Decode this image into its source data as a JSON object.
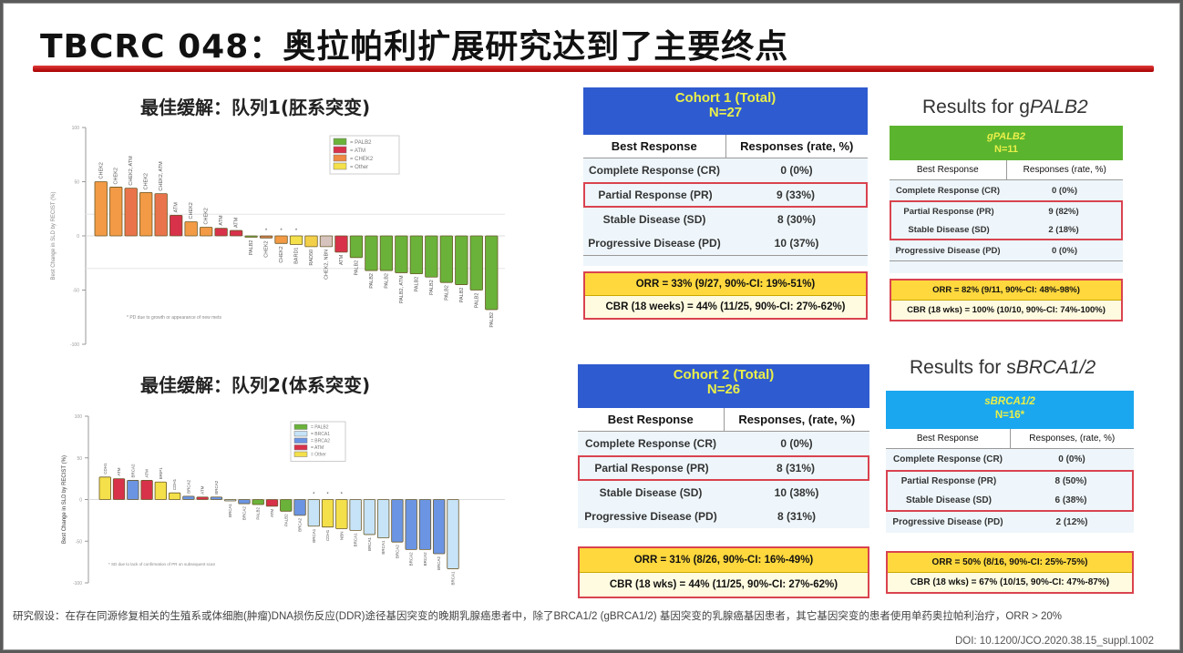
{
  "slide": {
    "title": "TBCRC 048：奥拉帕利扩展研究达到了主要终点",
    "section1_title": "最佳缓解：队列1(胚系突变)",
    "section2_title": "最佳缓解：队列2(体系突变)",
    "footnote": "研究假设：在存在同源修复相关的生殖系或体细胞(肿瘤)DNA损伤反应(DDR)途径基因突变的晚期乳腺癌患者中，除了BRCA1/2 (gBRCA1/2) 基因突变的乳腺癌基因患者，其它基因突变的患者使用单药奥拉帕利治疗，ORR > 20%",
    "doi": "DOI: 10.1200/JCO.2020.38.15_suppl.1002"
  },
  "tables": {
    "cohort1": {
      "header_line1": "Cohort 1 (Total)",
      "header_line2": "N=27",
      "header_color": "#2f5bd0",
      "col1": "Best Response",
      "col2": "Responses (rate, %)",
      "rows": [
        {
          "label": "Complete Response (CR)",
          "value": "0 (0%)"
        },
        {
          "label": "Partial Response (PR)",
          "value": "9  (33%)"
        },
        {
          "label": "Stable Disease (SD)",
          "value": "8  (30%)"
        },
        {
          "label": "Progressive Disease (PD)",
          "value": "10 (37%)"
        }
      ],
      "orr": "ORR = 33% (9/27, 90%-CI: 19%-51%)",
      "cbr": "CBR (18 weeks) =  44% (11/25, 90%-CI: 27%-62%)"
    },
    "gpalb2": {
      "title_prefix": "Results for g",
      "title_gene": "PALB2",
      "header_line1": "gPALB2",
      "header_line2": "N=11",
      "header_color": "#5bb42e",
      "col1": "Best Response",
      "col2": "Responses (rate, %)",
      "rows": [
        {
          "label": "Complete Response (CR)",
          "value": "0 (0%)"
        },
        {
          "label": "Partial Response (PR)",
          "value": "9 (82%)"
        },
        {
          "label": "Stable Disease (SD)",
          "value": "2 (18%)"
        },
        {
          "label": "Progressive Disease (PD)",
          "value": "0 (0%)"
        }
      ],
      "orr": "ORR = 82% (9/11, 90%-CI: 48%-98%)",
      "cbr": "CBR (18 wks) = 100% (10/10, 90%-CI: 74%-100%)"
    },
    "cohort2": {
      "header_line1": "Cohort 2 (Total)",
      "header_line2": "N=26",
      "header_color": "#2f5bd0",
      "col1": "Best Response",
      "col2": "Responses, (rate, %)",
      "rows": [
        {
          "label": "Complete Response (CR)",
          "value": "0 (0%)"
        },
        {
          "label": "Partial Response (PR)",
          "value": "8 (31%)"
        },
        {
          "label": "Stable Disease (SD)",
          "value": "10 (38%)"
        },
        {
          "label": "Progressive Disease (PD)",
          "value": "8 (31%)"
        }
      ],
      "orr": "ORR =  31%  (8/26, 90%-CI: 16%-49%)",
      "cbr": "CBR (18 wks) = 44% (11/25, 90%-CI: 27%-62%)"
    },
    "sbrca": {
      "title_prefix": "Results for s",
      "title_gene": "BRCA1/2",
      "header_line1": "sBRCA1/2",
      "header_line2": "N=16*",
      "header_color": "#1aa7ef",
      "col1": "Best Response",
      "col2": "Responses, (rate, %)",
      "rows": [
        {
          "label": "Complete Response (CR)",
          "value": "0 (0%)"
        },
        {
          "label": "Partial Response (PR)",
          "value": "8 (50%)"
        },
        {
          "label": "Stable Disease (SD)",
          "value": "6 (38%)"
        },
        {
          "label": "Progressive Disease (PD)",
          "value": "2 (12%)"
        }
      ],
      "orr": "ORR = 50% (8/16, 90%-CI: 25%-75%)",
      "cbr": "CBR (18 wks) = 67% (10/15, 90%-CI: 47%-87%)"
    }
  },
  "chart_data": [
    {
      "type": "bar",
      "title": "最佳缓解：队列1(胚系突变)",
      "ylabel": "Best Change in SLD by RECIST (%)",
      "ylim": [
        -100,
        100
      ],
      "yticks": [
        100,
        50,
        0,
        -50,
        -100
      ],
      "reference_lines": [
        20,
        -30
      ],
      "legend": [
        {
          "label": "= PALB2",
          "color": "#6ab23a"
        },
        {
          "label": "= ATM",
          "color": "#d8314a"
        },
        {
          "label": "= CHEK2",
          "color": "#ee8a42"
        },
        {
          "label": "= Other",
          "color": "#f3e04a"
        }
      ],
      "annotation": "* PD due to growth or appearance of new mets",
      "categories": [
        "CHEK2",
        "CHEK2",
        "CHEK2, ATM",
        "CHEK2",
        "CHEK2, ATM",
        "ATM",
        "CHEK2",
        "CHEK2",
        "ATM",
        "ATM",
        "PALB2",
        "CHEK2",
        "CHEK2",
        "BARD1",
        "RAD50",
        "CHEK2, NBN",
        "ATM",
        "PALB2",
        "PALB2",
        "PALB2",
        "PALB2, ATM",
        "PALB2",
        "PALB2",
        "PALB2",
        "PALB2",
        "PALB2",
        "PALB2"
      ],
      "colors": [
        "#f29a45",
        "#f29a45",
        "#e9734a",
        "#f29a45",
        "#e9734a",
        "#d8314a",
        "#f29a45",
        "#f29a45",
        "#d8314a",
        "#d8314a",
        "#6ab23a",
        "#c97b4a",
        "#f29a45",
        "#f3e04a",
        "#f3d04a",
        "#d6c3bd",
        "#d8314a",
        "#6ab23a",
        "#6ab23a",
        "#6ab23a",
        "#6ab23a",
        "#6ab23a",
        "#6ab23a",
        "#6ab23a",
        "#6ab23a",
        "#6ab23a",
        "#6ab23a"
      ],
      "values": [
        50,
        45,
        44,
        40,
        39,
        19,
        13,
        8,
        7,
        5,
        -1,
        -2,
        -7,
        -8,
        -10,
        -10,
        -15,
        -20,
        -32,
        -32,
        -34,
        -35,
        -38,
        -43,
        -45,
        -50,
        -68
      ],
      "markers": [
        false,
        false,
        false,
        false,
        false,
        false,
        false,
        false,
        false,
        false,
        false,
        true,
        true,
        true,
        false,
        false,
        false,
        false,
        false,
        false,
        false,
        false,
        false,
        false,
        false,
        false,
        false
      ]
    },
    {
      "type": "bar",
      "title": "最佳缓解：队列2(体系突变)",
      "ylabel": "Best Change in SLD by RECIST (%)",
      "ylim": [
        -100,
        100
      ],
      "yticks": [
        100,
        50,
        0,
        -50,
        -100
      ],
      "legend": [
        {
          "label": "= PALB2",
          "color": "#6ab23a"
        },
        {
          "label": "= BRCA1",
          "color": "#c6e3f7"
        },
        {
          "label": "= BRCA2",
          "color": "#6b94e3"
        },
        {
          "label": "= ATM",
          "color": "#d8314a"
        },
        {
          "label": "= Other",
          "color": "#f3e04a"
        }
      ],
      "annotation": "* SD due to lack of confirmation of PR on subsequent scan",
      "categories": [
        "CDH1",
        "ATM",
        "BRCA2",
        "ATM",
        "BRIP1",
        "CDH1",
        "BRCA2",
        "ATM",
        "BRCA2",
        "BRCA1",
        "BRCA2",
        "PALB2",
        "ATM",
        "PALB2",
        "BRCA2",
        "BRCA1",
        "CDH1",
        "NBN",
        "BRCA1",
        "BRCA1",
        "BRCA1",
        "BRCA2",
        "BRCA2",
        "BRCA2",
        "BRCA2",
        "BRCA1"
      ],
      "colors": [
        "#f3e04a",
        "#d8314a",
        "#6b94e3",
        "#d8314a",
        "#f3e04a",
        "#f3e04a",
        "#6b94e3",
        "#d8314a",
        "#6b94e3",
        "#c6e3f7",
        "#6b94e3",
        "#6ab23a",
        "#d8314a",
        "#6ab23a",
        "#6b94e3",
        "#c6e3f7",
        "#f3e04a",
        "#f3e04a",
        "#c6e3f7",
        "#c6e3f7",
        "#c6e3f7",
        "#6b94e3",
        "#6b94e3",
        "#6b94e3",
        "#6b94e3",
        "#c6e3f7"
      ],
      "values": [
        27,
        25,
        23,
        23,
        21,
        8,
        4,
        3,
        3,
        -1,
        -5,
        -6,
        -8,
        -14,
        -19,
        -32,
        -33,
        -35,
        -37,
        -42,
        -46,
        -51,
        -60,
        -60,
        -65,
        -83
      ],
      "markers": [
        false,
        false,
        false,
        false,
        false,
        false,
        false,
        false,
        false,
        false,
        false,
        false,
        false,
        false,
        false,
        true,
        true,
        true,
        false,
        false,
        false,
        false,
        false,
        false,
        false,
        false
      ]
    }
  ]
}
